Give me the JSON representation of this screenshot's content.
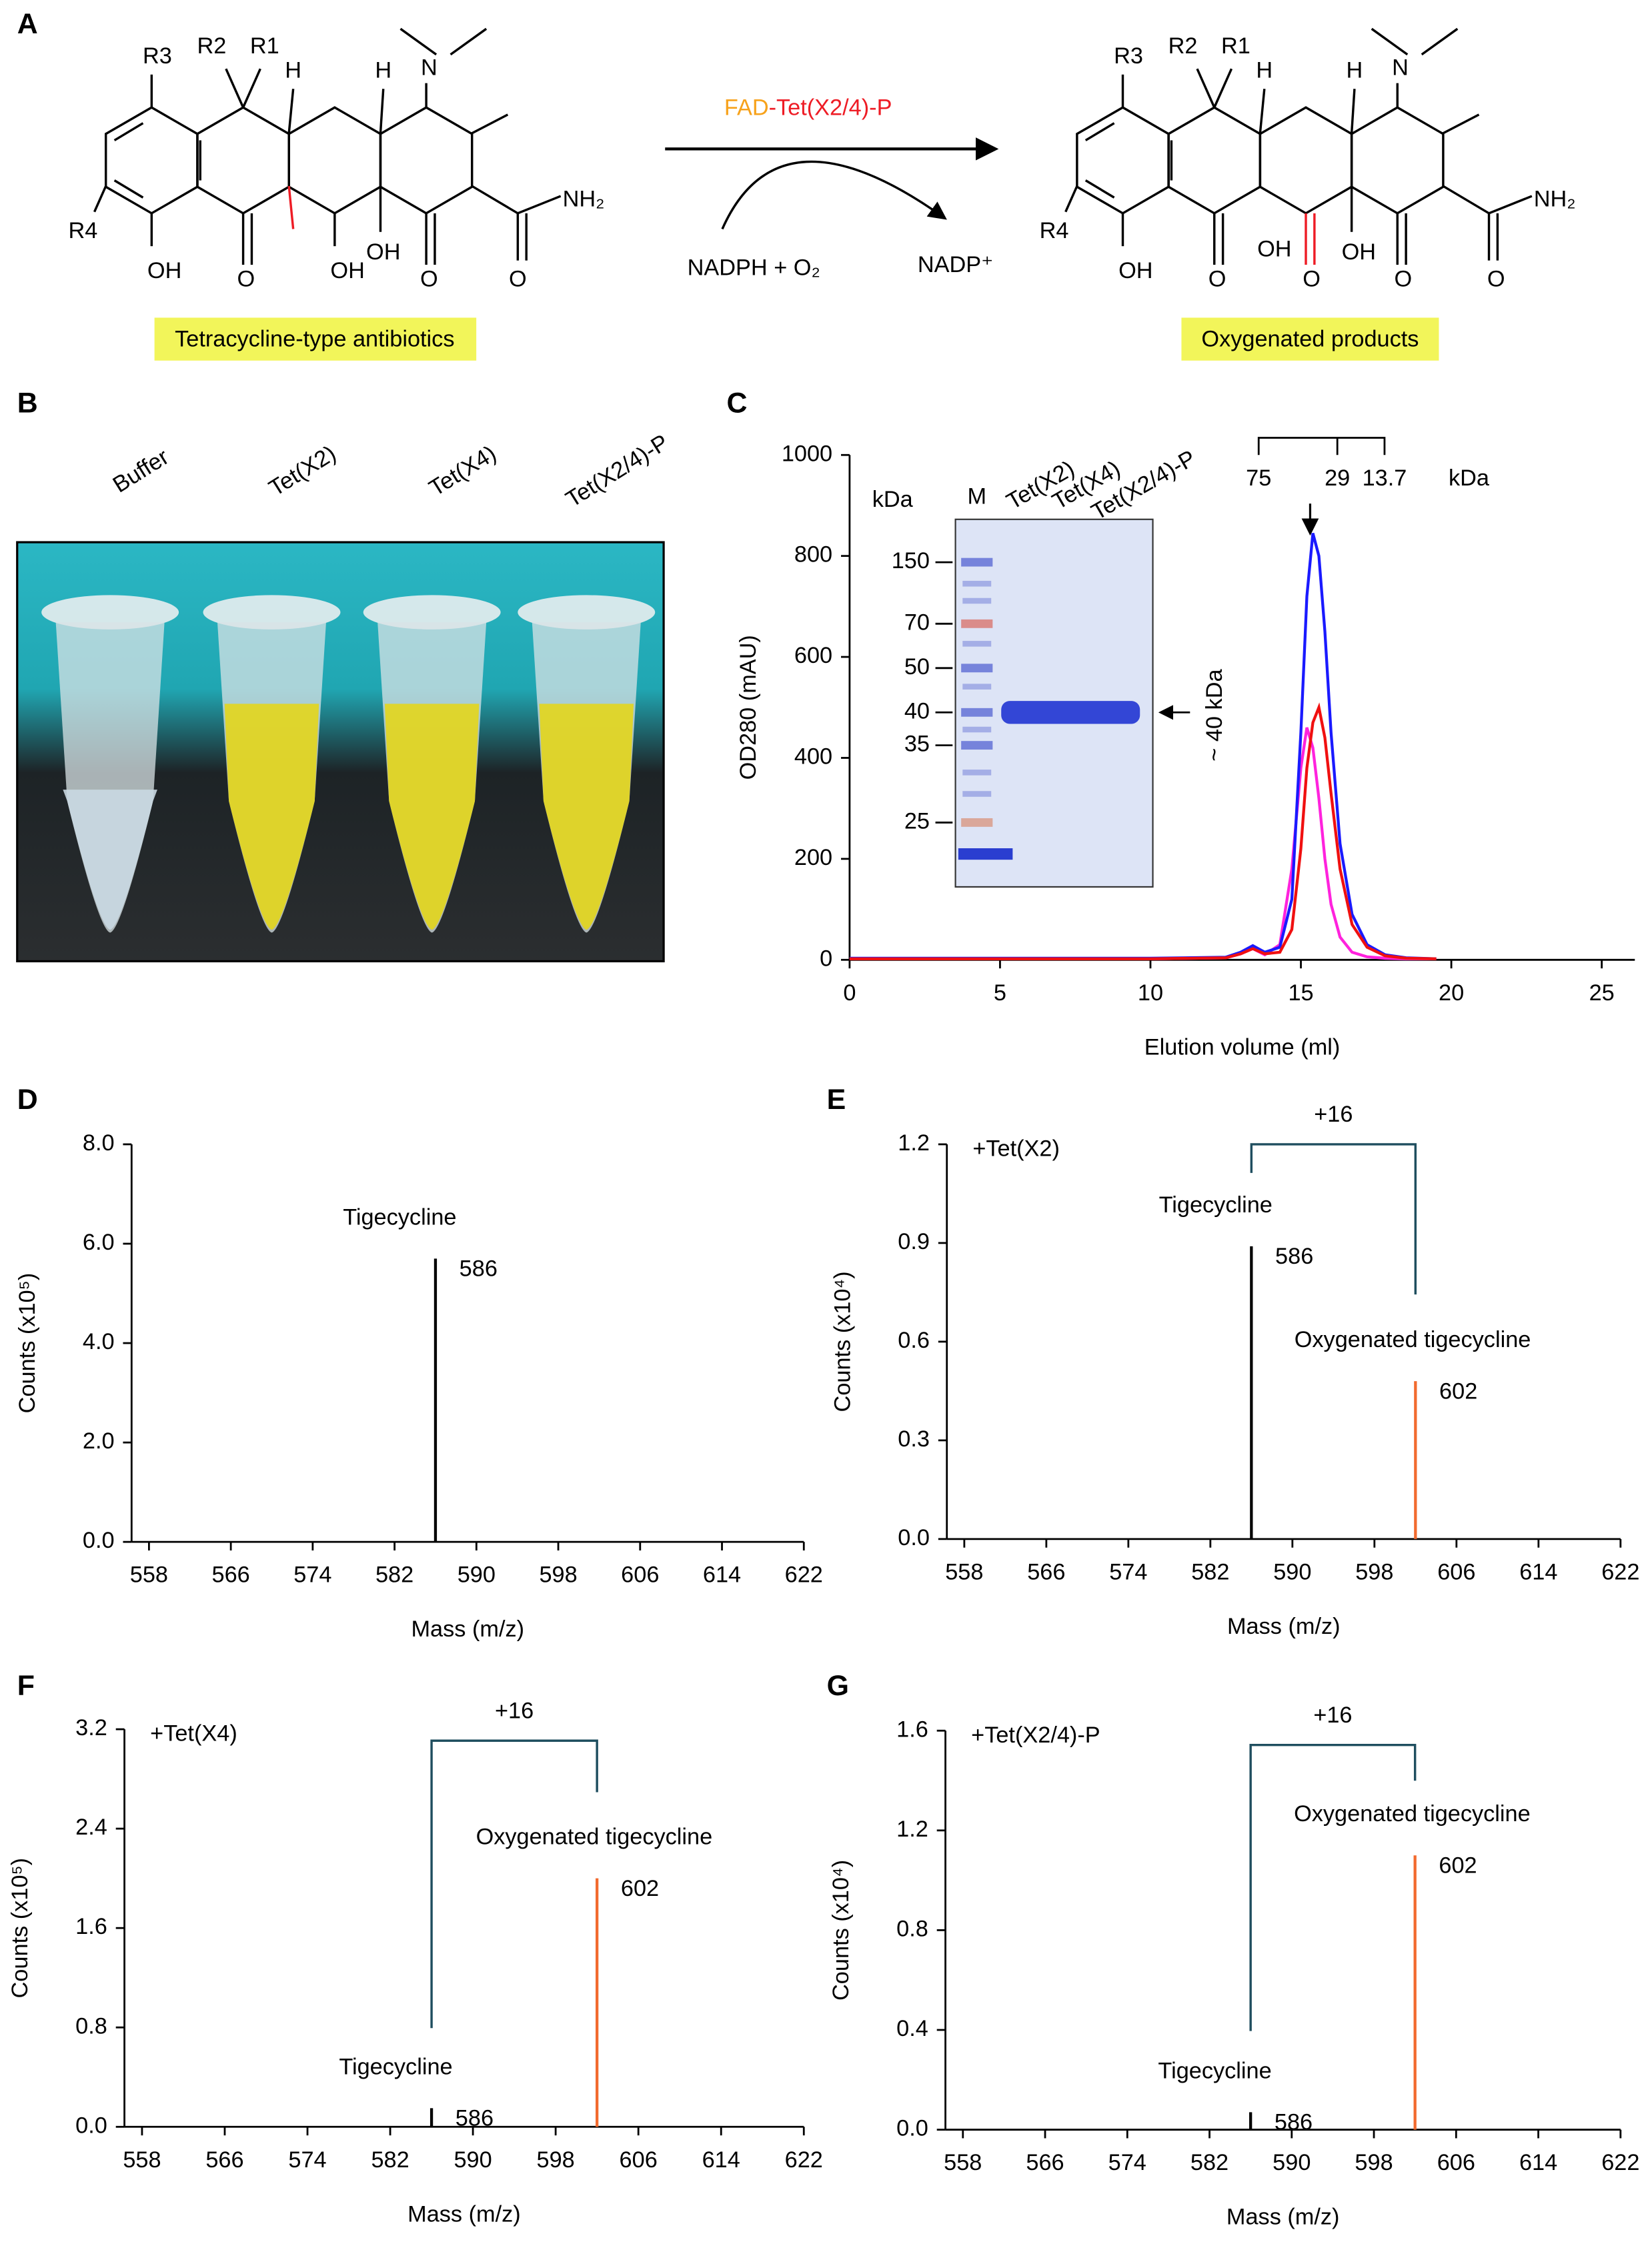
{
  "reaction": {
    "panel": "A",
    "reactant_labels": [
      "R3",
      "R2",
      "R1",
      "H",
      "H",
      "N",
      "NH₂",
      "R4",
      "OH",
      "O",
      "OH",
      "OH",
      "O",
      "O"
    ],
    "product_labels": [
      "R3",
      "R2",
      "R1",
      "H",
      "H",
      "N",
      "NH₂",
      "R4",
      "OH",
      "O",
      "OH",
      "O",
      "O"
    ],
    "product_new_groups": [
      "OH",
      "O"
    ],
    "new_group_color": "#ee1c25",
    "enzyme": [
      "FAD",
      "-Tet(X2/4)-P"
    ],
    "enzyme_colors": [
      "#f7a21b",
      "#ee1c25"
    ],
    "cofactor_in": "NADPH + O₂",
    "cofactor_out": "NADP⁺",
    "reactant_caption": "Tetracycline-type antibiotics",
    "product_caption": "Oxygenated products",
    "product_caption_color": "#ee1c25",
    "caption_fill": "#f2f55a"
  },
  "tubes": {
    "panel": "B",
    "labels": [
      "Buffer",
      "Tet(X2)",
      "Tet(X4)",
      "Tet(X2/4)-P"
    ],
    "label_colors": [
      "#9a9a9a",
      "#ff22dd",
      "#2222ee",
      "#ee1c25"
    ]
  },
  "chart_data": [
    {
      "panel": "C",
      "type": "line",
      "xlabel": "Elution volume (ml)",
      "ylabel": "OD280 (mAU)",
      "xlim": [
        0,
        26.1
      ],
      "ylim": [
        0,
        1000
      ],
      "xticks": [
        0,
        5,
        10,
        15,
        20,
        25
      ],
      "yticks": [
        0,
        200,
        400,
        600,
        800,
        1000
      ],
      "x": [
        0,
        5,
        10,
        12.5,
        13,
        13.4,
        13.8,
        14.3,
        14.7,
        15.0,
        15.2,
        15.4,
        15.6,
        15.8,
        16.0,
        16.3,
        16.7,
        17.2,
        17.8,
        18.5,
        19.5
      ],
      "series": [
        {
          "name": "Tet(X2)",
          "color": "#ff22dd",
          "values": [
            2,
            2,
            2,
            4,
            12,
            22,
            10,
            30,
            180,
            380,
            460,
            420,
            320,
            200,
            110,
            45,
            15,
            6,
            3,
            2,
            2
          ]
        },
        {
          "name": "Tet(X4)",
          "color": "#1a1aff",
          "values": [
            3,
            3,
            3,
            5,
            15,
            28,
            15,
            25,
            120,
            450,
            720,
            845,
            800,
            650,
            450,
            230,
            90,
            30,
            10,
            4,
            2
          ]
        },
        {
          "name": "Tet(X2/4)-P",
          "color": "#f01010",
          "values": [
            2,
            2,
            2,
            4,
            12,
            22,
            12,
            15,
            60,
            220,
            380,
            470,
            500,
            440,
            330,
            180,
            70,
            25,
            8,
            3,
            2
          ]
        }
      ],
      "inset": {
        "unit": "kDa",
        "marker_lane": "M",
        "markers": [
          150,
          70,
          50,
          40,
          35,
          25
        ],
        "band_label": "~ 40 kDa"
      },
      "standards": {
        "values": [
          75,
          29,
          13.7
        ],
        "unit": "kDa"
      }
    },
    {
      "panel": "D",
      "type": "stick",
      "xlabel": "Mass (m/z)",
      "ylabel": "Counts (x10⁵)",
      "xlim": [
        556.3,
        622
      ],
      "ylim": [
        0,
        8
      ],
      "xticks": [
        558,
        566,
        574,
        582,
        590,
        598,
        606,
        614,
        622
      ],
      "yticks": [
        {
          "value": 0,
          "label": "0.0"
        },
        {
          "value": 2,
          "label": "2.0"
        },
        {
          "value": 4,
          "label": "4.0"
        },
        {
          "value": 6,
          "label": "6.0"
        },
        {
          "value": 8,
          "label": "8.0"
        }
      ],
      "series": [
        {
          "name": "Tigecycline",
          "color": "#000000",
          "x": [
            586
          ],
          "values": [
            5.7
          ]
        }
      ]
    },
    {
      "panel": "E",
      "type": "stick",
      "xlabel": "Mass (m/z)",
      "ylabel": "Counts (x10⁴)",
      "xlim": [
        556.3,
        622
      ],
      "ylim": [
        0,
        1.2
      ],
      "condition": "+Tet(X2)",
      "condition_color": "#ff22dd",
      "shift_label": "+16",
      "shift_color": "#f26a2e",
      "xticks": [
        558,
        566,
        574,
        582,
        590,
        598,
        606,
        614,
        622
      ],
      "yticks": [
        {
          "value": 0,
          "label": "0.0"
        },
        0.3,
        0.6,
        0.9,
        1.2
      ],
      "series": [
        {
          "name": "Tigecycline",
          "color": "#000000",
          "x": [
            586
          ],
          "values": [
            0.89
          ]
        },
        {
          "name": "Oxygenated tigecycline",
          "color": "#f26a2e",
          "x": [
            602
          ],
          "values": [
            0.48
          ]
        }
      ]
    },
    {
      "panel": "F",
      "type": "stick",
      "xlabel": "Mass (m/z)",
      "ylabel": "Counts (x10⁵)",
      "xlim": [
        556.3,
        622
      ],
      "ylim": [
        0,
        3.2
      ],
      "condition": "+Tet(X4)",
      "condition_color": "#2222ee",
      "shift_label": "+16",
      "shift_color": "#f26a2e",
      "xticks": [
        558,
        566,
        574,
        582,
        590,
        598,
        606,
        614,
        622
      ],
      "yticks": [
        {
          "value": 0,
          "label": "0.0"
        },
        0.8,
        1.6,
        2.4,
        3.2
      ],
      "series": [
        {
          "name": "Tigecycline",
          "color": "#000000",
          "x": [
            586
          ],
          "values": [
            0.15
          ]
        },
        {
          "name": "Oxygenated tigecycline",
          "color": "#f26a2e",
          "x": [
            602
          ],
          "values": [
            2.0
          ]
        }
      ]
    },
    {
      "panel": "G",
      "type": "stick",
      "xlabel": "Mass (m/z)",
      "ylabel": "Counts (x10⁴)",
      "xlim": [
        556.3,
        622
      ],
      "ylim": [
        0,
        1.6
      ],
      "condition": "+Tet(X2/4)-P",
      "condition_color": "#ee1c25",
      "shift_label": "+16",
      "shift_color": "#f26a2e",
      "xticks": [
        558,
        566,
        574,
        582,
        590,
        598,
        606,
        614,
        622
      ],
      "yticks": [
        {
          "value": 0,
          "label": "0.0"
        },
        0.4,
        0.8,
        1.2,
        1.6
      ],
      "series": [
        {
          "name": "Tigecycline",
          "color": "#000000",
          "x": [
            586
          ],
          "values": [
            0.07
          ]
        },
        {
          "name": "Oxygenated tigecycline",
          "color": "#f26a2e",
          "x": [
            602
          ],
          "values": [
            1.1
          ]
        }
      ]
    }
  ]
}
